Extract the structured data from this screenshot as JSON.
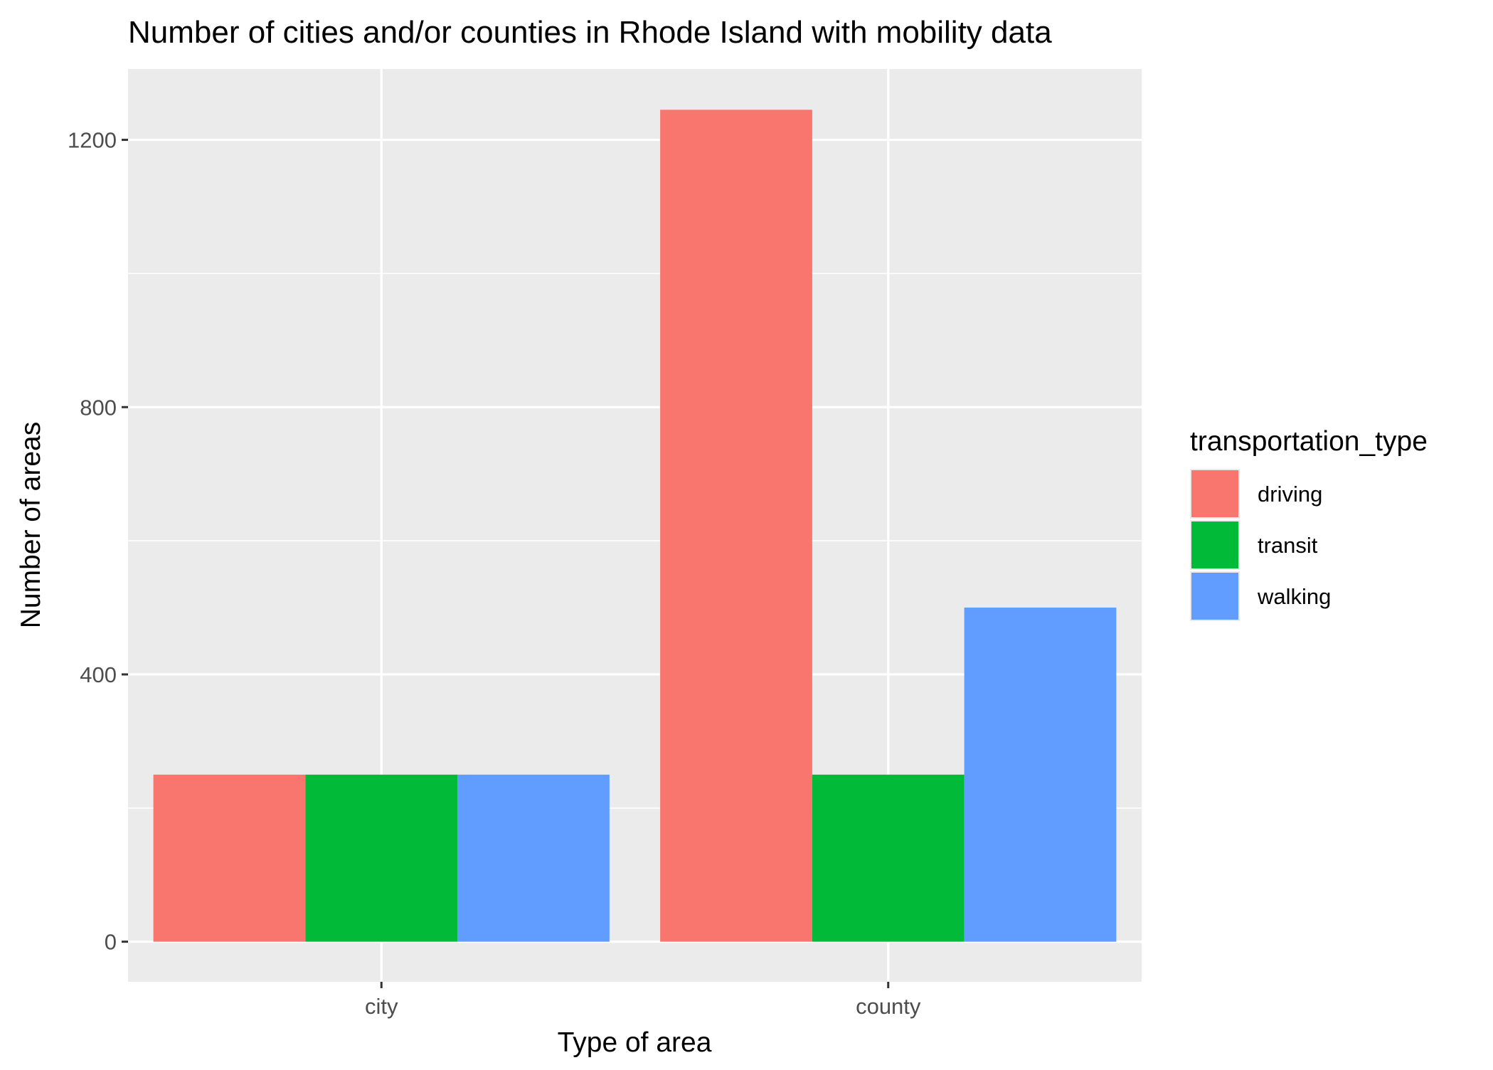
{
  "chart_data": {
    "type": "bar",
    "title": "Number of cities and/or counties in Rhode Island with mobility data",
    "xlabel": "Type of area",
    "ylabel": "Number of areas",
    "categories": [
      "city",
      "county"
    ],
    "series": [
      {
        "name": "driving",
        "color": "#F8766D",
        "values": [
          250,
          1245
        ]
      },
      {
        "name": "transit",
        "color": "#00BA38",
        "values": [
          250,
          250
        ]
      },
      {
        "name": "walking",
        "color": "#619CFF",
        "values": [
          250,
          500
        ]
      }
    ],
    "ylim": [
      -60,
      1306
    ],
    "yticks": [
      0,
      400,
      800,
      1200
    ],
    "grid": true,
    "legend": {
      "title": "transportation_type",
      "position": "right"
    },
    "panel_background": "#EBEBEB",
    "grid_color": "#FFFFFF"
  }
}
